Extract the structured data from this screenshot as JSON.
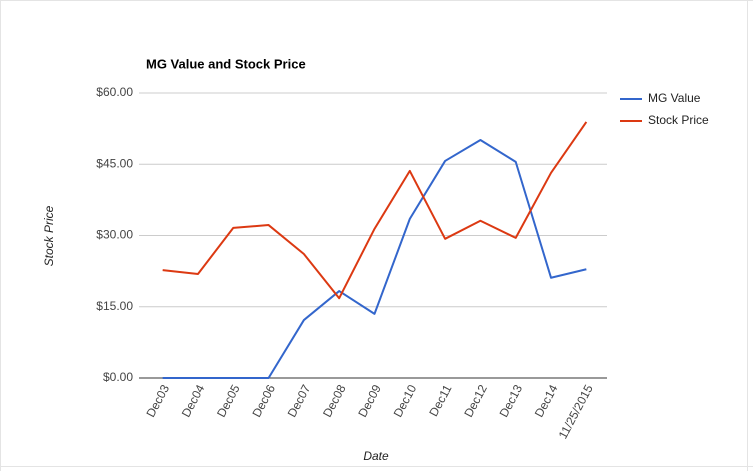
{
  "chart_data": {
    "type": "line",
    "title": "MG Value and Stock Price",
    "x_label": "Date",
    "y_label": "Stock Price",
    "categories": [
      "Dec03",
      "Dec04",
      "Dec05",
      "Dec06",
      "Dec07",
      "Dec08",
      "Dec09",
      "Dec10",
      "Dec11",
      "Dec12",
      "Dec13",
      "Dec14",
      "11/25/2015"
    ],
    "series": [
      {
        "name": "MG Value",
        "color": "#3366cc",
        "values": [
          0,
          0,
          0,
          0,
          12.2,
          18.3,
          13.5,
          33.5,
          45.7,
          50.1,
          45.5,
          21.1,
          22.9
        ]
      },
      {
        "name": "Stock Price",
        "color": "#dc3912",
        "values": [
          22.7,
          21.9,
          31.6,
          32.2,
          26.1,
          16.8,
          31.4,
          43.6,
          29.3,
          33.1,
          29.5,
          43.2,
          53.9
        ]
      }
    ],
    "ylim": [
      0,
      60
    ],
    "yticks": [
      {
        "value": 0,
        "label": "$0.00"
      },
      {
        "value": 15,
        "label": "$15.00"
      },
      {
        "value": 30,
        "label": "$30.00"
      },
      {
        "value": 45,
        "label": "$45.00"
      },
      {
        "value": 60,
        "label": "$60.00"
      }
    ],
    "grid": true,
    "legend": "right"
  }
}
